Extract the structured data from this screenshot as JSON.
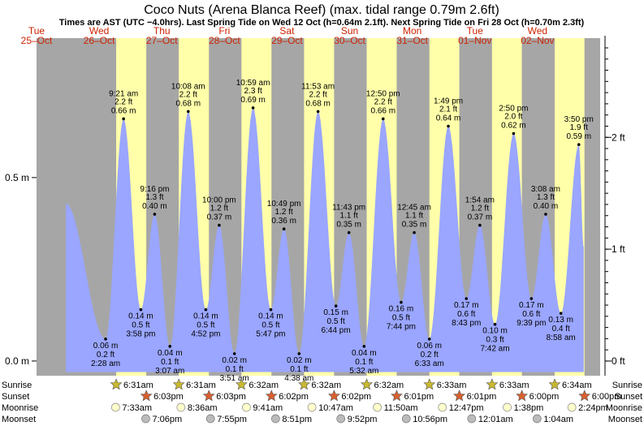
{
  "title": "Coco Nuts (Arena Blanca Reef) (max. tidal range 0.79m 2.6ft)",
  "subtitle": "Times are AST (UTC −4.0hrs). Last Spring Tide on Wed 12 Oct (h=0.64m 2.1ft). Next Spring Tide on Fri 28 Oct (h=0.70m 2.3ft)",
  "days": [
    {
      "dow": "Tue",
      "date": "25–Oct"
    },
    {
      "dow": "Wed",
      "date": "26–Oct"
    },
    {
      "dow": "Thu",
      "date": "27–Oct"
    },
    {
      "dow": "Fri",
      "date": "28–Oct"
    },
    {
      "dow": "Sat",
      "date": "29–Oct"
    },
    {
      "dow": "Sun",
      "date": "30–Oct"
    },
    {
      "dow": "Mon",
      "date": "31–Oct"
    },
    {
      "dow": "Tue",
      "date": "01–Nov"
    },
    {
      "dow": "Wed",
      "date": "02–Nov"
    }
  ],
  "colors": {
    "night": "#a6a6a6",
    "day": "#ffffaa",
    "tide_fill": "#9aa6ff",
    "sun": "#c8b830",
    "sunset": "#d86030",
    "moonrise": "#ffffcc",
    "moonset": "#bbbbbb"
  },
  "chart_data": {
    "type": "area",
    "title": "Coco Nuts (Arena Blanca Reef) (max. tidal range 0.79m 2.6ft)",
    "x_unit": "hours since 00:00 Tue 25-Oct (AST)",
    "xlim": [
      0,
      216
    ],
    "ylim_m": [
      -0.04,
      0.88
    ],
    "ylim_ft": [
      -0.131,
      2.887
    ],
    "left_ticks": [
      {
        "value": 0.0,
        "label": "0.0 m"
      },
      {
        "value": 0.5,
        "label": "0.5 m"
      }
    ],
    "right_ticks": [
      {
        "value": 0,
        "label": "0 ft"
      },
      {
        "value": 1,
        "label": "1 ft"
      },
      {
        "value": 2,
        "label": "2 ft"
      }
    ],
    "start": {
      "hour": 11.2,
      "h": 0.43
    },
    "end": {
      "hour": 209.7,
      "h": 0.31
    },
    "tides": [
      {
        "hour": 26.47,
        "h": 0.06,
        "type": "low",
        "time": "2:28 am",
        "ft": "0.2 ft",
        "m": "0.06 m"
      },
      {
        "hour": 33.35,
        "h": 0.66,
        "type": "high",
        "time": "9:21 am",
        "ft": "2.2 ft",
        "m": "0.66 m"
      },
      {
        "hour": 39.97,
        "h": 0.14,
        "type": "low",
        "time": "3:58 pm",
        "ft": "0.5 ft",
        "m": "0.14 m"
      },
      {
        "hour": 45.27,
        "h": 0.4,
        "type": "high",
        "time": "9:16 pm",
        "ft": "1.3 ft",
        "m": "0.40 m"
      },
      {
        "hour": 51.12,
        "h": 0.04,
        "type": "low",
        "time": "3:07 am",
        "ft": "0.1 ft",
        "m": "0.04 m"
      },
      {
        "hour": 58.13,
        "h": 0.68,
        "type": "high",
        "time": "10:08 am",
        "ft": "2.2 ft",
        "m": "0.68 m"
      },
      {
        "hour": 64.87,
        "h": 0.14,
        "type": "low",
        "time": "4:52 pm",
        "ft": "0.5 ft",
        "m": "0.14 m"
      },
      {
        "hour": 70.0,
        "h": 0.37,
        "type": "high",
        "time": "10:00 pm",
        "ft": "1.2 ft",
        "m": "0.37 m"
      },
      {
        "hour": 75.85,
        "h": 0.02,
        "type": "low",
        "time": "3:51 am",
        "ft": "0.1 ft",
        "m": "0.02 m"
      },
      {
        "hour": 82.98,
        "h": 0.69,
        "type": "high",
        "time": "10:59 am",
        "ft": "2.3 ft",
        "m": "0.69 m"
      },
      {
        "hour": 89.78,
        "h": 0.14,
        "type": "low",
        "time": "5:47 pm",
        "ft": "0.5 ft",
        "m": "0.14 m"
      },
      {
        "hour": 94.82,
        "h": 0.36,
        "type": "high",
        "time": "10:49 pm",
        "ft": "1.2 ft",
        "m": "0.36 m"
      },
      {
        "hour": 100.63,
        "h": 0.02,
        "type": "low",
        "time": "4:38 am",
        "ft": "0.1 ft",
        "m": "0.02 m"
      },
      {
        "hour": 107.88,
        "h": 0.68,
        "type": "high",
        "time": "11:53 am",
        "ft": "2.2 ft",
        "m": "0.68 m"
      },
      {
        "hour": 114.73,
        "h": 0.15,
        "type": "low",
        "time": "6:44 pm",
        "ft": "0.5 ft",
        "m": "0.15 m"
      },
      {
        "hour": 119.72,
        "h": 0.35,
        "type": "high",
        "time": "11:43 pm",
        "ft": "1.1 ft",
        "m": "0.35 m"
      },
      {
        "hour": 125.53,
        "h": 0.04,
        "type": "low",
        "time": "5:32 am",
        "ft": "0.1 ft",
        "m": "0.04 m"
      },
      {
        "hour": 132.83,
        "h": 0.66,
        "type": "high",
        "time": "12:50 pm",
        "ft": "2.2 ft",
        "m": "0.66 m"
      },
      {
        "hour": 139.73,
        "h": 0.16,
        "type": "low",
        "time": "7:44 pm",
        "ft": "0.5 ft",
        "m": "0.16 m"
      },
      {
        "hour": 144.75,
        "h": 0.35,
        "type": "high",
        "time": "12:45 am",
        "ft": "1.1 ft",
        "m": "0.35 m"
      },
      {
        "hour": 150.55,
        "h": 0.06,
        "type": "low",
        "time": "6:33 am",
        "ft": "0.2 ft",
        "m": "0.06 m"
      },
      {
        "hour": 157.82,
        "h": 0.64,
        "type": "high",
        "time": "1:49 pm",
        "ft": "2.1 ft",
        "m": "0.64 m"
      },
      {
        "hour": 164.72,
        "h": 0.17,
        "type": "low",
        "time": "8:43 pm",
        "ft": "0.6 ft",
        "m": "0.17 m"
      },
      {
        "hour": 169.9,
        "h": 0.37,
        "type": "high",
        "time": "1:54 am",
        "ft": "1.2 ft",
        "m": "0.37 m"
      },
      {
        "hour": 175.7,
        "h": 0.1,
        "type": "low",
        "time": "7:42 am",
        "ft": "0.3 ft",
        "m": "0.10 m"
      },
      {
        "hour": 182.83,
        "h": 0.62,
        "type": "high",
        "time": "2:50 pm",
        "ft": "2.0 ft",
        "m": "0.62 m"
      },
      {
        "hour": 189.65,
        "h": 0.17,
        "type": "low",
        "time": "9:39 pm",
        "ft": "0.6 ft",
        "m": "0.17 m"
      },
      {
        "hour": 195.13,
        "h": 0.4,
        "type": "high",
        "time": "3:08 am",
        "ft": "1.3 ft",
        "m": "0.40 m"
      },
      {
        "hour": 200.97,
        "h": 0.13,
        "type": "low",
        "time": "8:58 am",
        "ft": "0.4 ft",
        "m": "0.13 m"
      },
      {
        "hour": 207.83,
        "h": 0.59,
        "type": "high",
        "time": "3:50 pm",
        "ft": "1.9 ft",
        "m": "0.59 m"
      }
    ],
    "bottom_rows": [
      "Sunrise",
      "Sunset",
      "Moonrise",
      "Moonset"
    ],
    "sunrise": [
      {
        "hour": 30.52,
        "label": "6:31am"
      },
      {
        "hour": 54.52,
        "label": "6:31am"
      },
      {
        "hour": 78.53,
        "label": "6:32am"
      },
      {
        "hour": 102.53,
        "label": "6:32am"
      },
      {
        "hour": 126.53,
        "label": "6:32am"
      },
      {
        "hour": 150.55,
        "label": "6:33am"
      },
      {
        "hour": 174.55,
        "label": "6:33am"
      },
      {
        "hour": 198.57,
        "label": "6:34am"
      }
    ],
    "sunset": [
      {
        "hour": 42.05,
        "label": "6:03pm"
      },
      {
        "hour": 66.05,
        "label": "6:03pm"
      },
      {
        "hour": 90.03,
        "label": "6:02pm"
      },
      {
        "hour": 114.03,
        "label": "6:02pm"
      },
      {
        "hour": 138.02,
        "label": "6:01pm"
      },
      {
        "hour": 162.02,
        "label": "6:01pm"
      },
      {
        "hour": 186.0,
        "label": "6:00pm"
      },
      {
        "hour": 210.0,
        "label": "6:00pm"
      }
    ],
    "moonrise": [
      {
        "hour": 31.55,
        "label": "7:33am"
      },
      {
        "hour": 56.6,
        "label": "8:36am"
      },
      {
        "hour": 81.68,
        "label": "9:41am"
      },
      {
        "hour": 106.78,
        "label": "10:47am"
      },
      {
        "hour": 131.83,
        "label": "11:50am"
      },
      {
        "hour": 156.78,
        "label": "12:47pm"
      },
      {
        "hour": 181.63,
        "label": "1:38pm"
      },
      {
        "hour": 206.4,
        "label": "2:24pm"
      }
    ],
    "moonset": [
      {
        "hour": 43.1,
        "label": "7:06pm"
      },
      {
        "hour": 67.92,
        "label": "7:55pm"
      },
      {
        "hour": 92.85,
        "label": "8:51pm"
      },
      {
        "hour": 117.87,
        "label": "9:52pm"
      },
      {
        "hour": 142.93,
        "label": "10:56pm"
      },
      {
        "hour": 168.02,
        "label": "12:01am"
      },
      {
        "hour": 193.07,
        "label": "1:04am"
      }
    ]
  }
}
